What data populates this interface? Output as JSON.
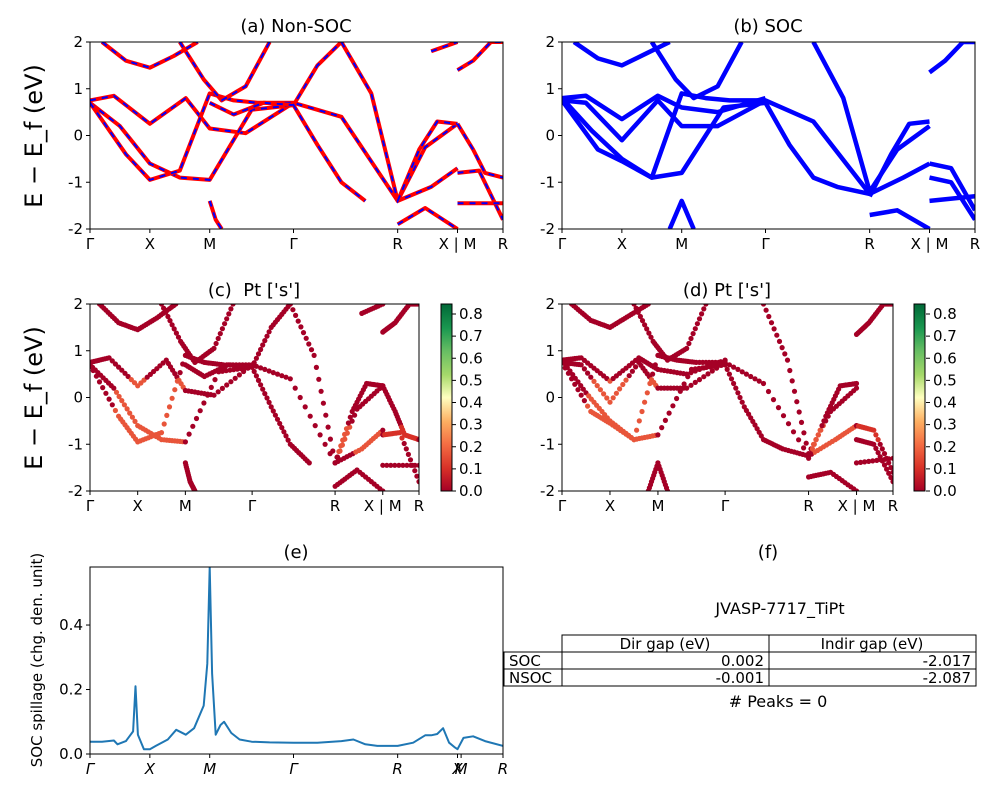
{
  "chart_data": [
    {
      "type": "line",
      "title": "(a) Non-SOC",
      "ylabel": "E − E_f (eV)",
      "ylim": [
        -2,
        2
      ],
      "yticks": [
        -2,
        -1,
        0,
        1,
        2
      ],
      "x_labels": [
        "Γ",
        "X",
        "M",
        "Γ",
        "R",
        "X | M",
        "R"
      ],
      "x_positions": [
        0,
        0.5,
        1.0,
        1.7,
        2.57,
        3.07,
        3.45
      ],
      "line_style": "red solid with blue dashes",
      "series": [
        {
          "x": [
            0,
            0.2,
            0.5,
            0.8,
            1.0,
            1.3,
            1.7
          ],
          "y": [
            0.75,
            0.85,
            0.25,
            0.8,
            0.15,
            0.05,
            0.7
          ]
        },
        {
          "x": [
            0,
            0.25,
            0.5,
            0.75,
            1.0,
            1.35,
            1.7
          ],
          "y": [
            0.7,
            0.2,
            -0.6,
            -0.9,
            -0.95,
            0.55,
            0.65
          ]
        },
        {
          "x": [
            0,
            0.3,
            0.5,
            0.75,
            1.0,
            1.2,
            1.4,
            1.7,
            2.1,
            2.57,
            2.85,
            3.07
          ],
          "y": [
            0.7,
            -0.4,
            -0.95,
            -0.75,
            0.9,
            0.75,
            0.7,
            0.7,
            0.4,
            -1.4,
            -1.1,
            -0.7
          ]
        },
        {
          "x": [
            0.1,
            0.3,
            0.5,
            0.7,
            0.9
          ],
          "y": [
            2.0,
            1.6,
            1.45,
            1.7,
            2.0
          ]
        },
        {
          "x": [
            0.75,
            0.95,
            1.1,
            1.3,
            1.5
          ],
          "y": [
            2.0,
            1.2,
            0.75,
            1.05,
            2.0
          ]
        },
        {
          "x": [
            1.0,
            1.2,
            1.45,
            1.7,
            1.9,
            2.1
          ],
          "y": [
            0.7,
            0.45,
            0.7,
            0.65,
            1.5,
            2.0
          ]
        },
        {
          "x": [
            1.7,
            1.9,
            2.1,
            2.3
          ],
          "y": [
            0.65,
            -0.2,
            -1.0,
            -1.4
          ]
        },
        {
          "x": [
            2.1,
            2.35,
            2.57,
            2.8,
            3.07
          ],
          "y": [
            2.0,
            0.9,
            -1.4,
            -0.25,
            0.25
          ]
        },
        {
          "x": [
            2.57,
            2.75,
            2.9,
            3.07
          ],
          "y": [
            -1.4,
            -0.3,
            0.3,
            0.25
          ]
        },
        {
          "x": [
            2.57,
            2.8,
            3.07
          ],
          "y": [
            -1.9,
            -1.55,
            -2.0
          ]
        },
        {
          "x": [
            3.07,
            3.2,
            3.35,
            3.45
          ],
          "y": [
            1.4,
            1.6,
            2.0,
            2.0
          ]
        },
        {
          "x": [
            3.07,
            3.2,
            3.3,
            3.45
          ],
          "y": [
            0.25,
            -0.3,
            -0.8,
            -0.9
          ]
        },
        {
          "x": [
            3.07,
            3.25,
            3.45
          ],
          "y": [
            -0.8,
            -0.75,
            -1.8
          ]
        },
        {
          "x": [
            3.07,
            3.45
          ],
          "y": [
            -1.45,
            -1.45
          ]
        },
        {
          "x": [
            2.85,
            3.07
          ],
          "y": [
            1.8,
            2.0
          ]
        },
        {
          "x": [
            1.0,
            1.05,
            1.1
          ],
          "y": [
            -1.4,
            -1.8,
            -2.0
          ]
        }
      ]
    },
    {
      "type": "line",
      "title": "(b) SOC",
      "ylim": [
        -2,
        2
      ],
      "yticks": [
        -2,
        -1,
        0,
        1,
        2
      ],
      "x_labels": [
        "Γ",
        "X",
        "M",
        "Γ",
        "R",
        "X | M",
        "R"
      ],
      "x_positions": [
        0,
        0.5,
        1.0,
        1.7,
        2.57,
        3.07,
        3.45
      ],
      "line_color": "#0000ff",
      "series": [
        {
          "x": [
            0,
            0.2,
            0.5,
            0.8,
            1.0,
            1.3,
            1.7
          ],
          "y": [
            0.8,
            0.85,
            0.35,
            0.85,
            0.6,
            0.5,
            0.8
          ]
        },
        {
          "x": [
            0,
            0.2,
            0.5,
            0.8,
            1.0,
            1.3,
            1.7
          ],
          "y": [
            0.75,
            0.7,
            -0.1,
            0.75,
            0.2,
            0.2,
            0.75
          ]
        },
        {
          "x": [
            0,
            0.25,
            0.5,
            0.75,
            1.0,
            1.35,
            1.7
          ],
          "y": [
            0.8,
            0.1,
            -0.5,
            -0.9,
            -0.8,
            0.6,
            0.7
          ]
        },
        {
          "x": [
            0,
            0.3,
            0.5,
            0.75,
            1.0,
            1.2,
            1.4,
            1.7,
            2.1,
            2.57,
            2.85,
            3.07
          ],
          "y": [
            0.75,
            -0.3,
            -0.55,
            -0.9,
            0.9,
            0.8,
            0.75,
            0.75,
            0.3,
            -1.25,
            -0.9,
            -0.6
          ]
        },
        {
          "x": [
            0.1,
            0.3,
            0.5,
            0.7,
            0.9
          ],
          "y": [
            2.0,
            1.65,
            1.5,
            1.75,
            2.0
          ]
        },
        {
          "x": [
            0.75,
            0.95,
            1.1,
            1.3,
            1.5
          ],
          "y": [
            2.0,
            1.2,
            0.8,
            1.05,
            2.0
          ]
        },
        {
          "x": [
            1.7,
            1.9,
            2.1,
            2.3,
            2.57
          ],
          "y": [
            0.7,
            -0.2,
            -0.9,
            -1.1,
            -1.25
          ]
        },
        {
          "x": [
            2.1,
            2.35,
            2.57,
            2.8,
            3.07
          ],
          "y": [
            2.0,
            0.8,
            -1.2,
            -0.3,
            0.2
          ]
        },
        {
          "x": [
            2.57,
            2.75,
            2.9,
            3.07
          ],
          "y": [
            -1.3,
            -0.4,
            0.25,
            0.3
          ]
        },
        {
          "x": [
            2.57,
            2.8,
            3.07
          ],
          "y": [
            -1.7,
            -1.6,
            -2.0
          ]
        },
        {
          "x": [
            3.07,
            3.2,
            3.35,
            3.45
          ],
          "y": [
            1.35,
            1.6,
            2.0,
            2.0
          ]
        },
        {
          "x": [
            3.07,
            3.25,
            3.45
          ],
          "y": [
            -0.6,
            -0.7,
            -1.6
          ]
        },
        {
          "x": [
            3.07,
            3.25,
            3.45
          ],
          "y": [
            -0.9,
            -1.0,
            -1.8
          ]
        },
        {
          "x": [
            3.07,
            3.45
          ],
          "y": [
            -1.4,
            -1.3
          ]
        },
        {
          "x": [
            0.9,
            1.0,
            1.1
          ],
          "y": [
            -2.0,
            -1.4,
            -2.0
          ]
        }
      ]
    },
    {
      "type": "scatter",
      "title": "(c)  Pt ['s']",
      "ylabel": "E − E_f (eV)",
      "ylim": [
        -2,
        2
      ],
      "yticks": [
        -2,
        -1,
        0,
        1,
        2
      ],
      "x_labels": [
        "Γ",
        "X",
        "M",
        "Γ",
        "R",
        "X | M",
        "R"
      ],
      "x_positions": [
        0,
        0.5,
        1.0,
        1.7,
        2.57,
        3.07,
        3.45
      ],
      "colorbar": {
        "min": 0.0,
        "max": 0.8,
        "ticks": [
          "0.0",
          "0.1",
          "0.2",
          "0.3",
          "0.4",
          "0.5",
          "0.6",
          "0.7",
          "0.8"
        ],
        "colormap": "RdYlGn"
      }
    },
    {
      "type": "scatter",
      "title": "(d) Pt ['s']",
      "ylim": [
        -2,
        2
      ],
      "yticks": [
        -2,
        -1,
        0,
        1,
        2
      ],
      "x_labels": [
        "Γ",
        "X",
        "M",
        "Γ",
        "R",
        "X | M",
        "R"
      ],
      "x_positions": [
        0,
        0.5,
        1.0,
        1.7,
        2.57,
        3.07,
        3.45
      ],
      "colorbar": {
        "min": 0.0,
        "max": 0.8,
        "ticks": [
          "0.0",
          "0.1",
          "0.2",
          "0.3",
          "0.4",
          "0.5",
          "0.6",
          "0.7",
          "0.8"
        ],
        "colormap": "RdYlGn"
      }
    },
    {
      "type": "line",
      "title": "(e)",
      "ylabel": "SOC spillage (chg. den. unit)",
      "ylim": [
        0,
        0.58
      ],
      "yticks": [
        "0.0",
        "0.2",
        "0.4"
      ],
      "x_labels": [
        "Γ",
        "X",
        "M",
        "Γ",
        "R",
        "X",
        "M",
        "R"
      ],
      "x_positions": [
        0,
        0.5,
        1.0,
        1.7,
        2.57,
        3.07,
        3.1,
        3.45
      ],
      "line_color": "#1f77b4",
      "x": [
        0,
        0.1,
        0.2,
        0.23,
        0.3,
        0.36,
        0.38,
        0.4,
        0.45,
        0.5,
        0.55,
        0.65,
        0.72,
        0.8,
        0.87,
        0.95,
        0.98,
        1.0,
        1.02,
        1.05,
        1.09,
        1.12,
        1.18,
        1.25,
        1.35,
        1.5,
        1.7,
        1.9,
        2.1,
        2.2,
        2.3,
        2.4,
        2.57,
        2.7,
        2.8,
        2.85,
        2.9,
        2.95,
        3.0,
        3.05,
        3.07,
        3.12,
        3.2,
        3.3,
        3.45
      ],
      "y": [
        0.038,
        0.038,
        0.042,
        0.03,
        0.04,
        0.07,
        0.21,
        0.06,
        0.015,
        0.015,
        0.025,
        0.045,
        0.075,
        0.06,
        0.08,
        0.15,
        0.28,
        0.58,
        0.25,
        0.06,
        0.09,
        0.1,
        0.065,
        0.045,
        0.038,
        0.036,
        0.035,
        0.035,
        0.04,
        0.045,
        0.03,
        0.025,
        0.025,
        0.035,
        0.058,
        0.058,
        0.062,
        0.08,
        0.035,
        0.02,
        0.015,
        0.05,
        0.055,
        0.04,
        0.025
      ]
    },
    {
      "type": "table",
      "title": "(f)",
      "subtitle": "JVASP-7717_TiPt",
      "columns": [
        "Dir gap (eV)",
        "Indir gap (eV)"
      ],
      "rows": [
        {
          "label": "SOC",
          "values": [
            "0.002",
            "-2.017"
          ]
        },
        {
          "label": "NSOC",
          "values": [
            "-0.001",
            "-2.087"
          ]
        }
      ],
      "footer": "# Peaks = 0"
    }
  ]
}
